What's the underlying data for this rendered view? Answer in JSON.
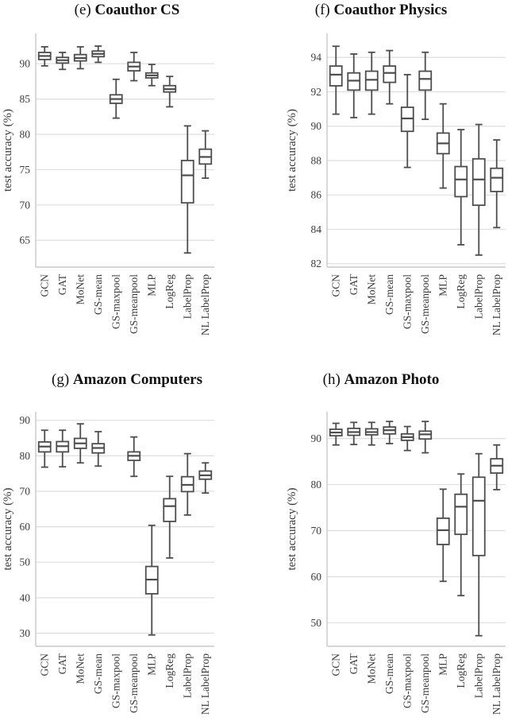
{
  "colors": {
    "box_stroke": "#4d4d4d",
    "grid": "#dedede",
    "spine": "#c9c9c9",
    "text": "#3c3c3c",
    "background": "#ffffff"
  },
  "chart_data": [
    {
      "type": "boxplot",
      "id": "e",
      "title_prefix": "(e)",
      "title_bold": "Coauthor CS",
      "ylabel": "test accuracy (%)",
      "ylim": [
        61.2,
        94.3
      ],
      "yticks": [
        65,
        70,
        75,
        80,
        85,
        90
      ],
      "grid": true,
      "legend": "none",
      "categories": [
        "GCN",
        "GAT",
        "MoNet",
        "GS-mean",
        "GS-maxpool",
        "GS-meanpool",
        "MLP",
        "LogReg",
        "LabelProp",
        "NL LabelProp"
      ],
      "boxes": [
        {
          "whislo": 89.7,
          "q1": 90.6,
          "med": 91.1,
          "q3": 91.6,
          "whishi": 92.4
        },
        {
          "whislo": 89.2,
          "q1": 90.1,
          "med": 90.5,
          "q3": 90.9,
          "whishi": 91.6
        },
        {
          "whislo": 89.3,
          "q1": 90.4,
          "med": 90.8,
          "q3": 91.3,
          "whishi": 92.4
        },
        {
          "whislo": 90.2,
          "q1": 91.0,
          "med": 91.4,
          "q3": 91.8,
          "whishi": 92.5
        },
        {
          "whislo": 82.3,
          "q1": 84.4,
          "med": 85.0,
          "q3": 85.6,
          "whishi": 87.8
        },
        {
          "whislo": 87.6,
          "q1": 89.0,
          "med": 89.6,
          "q3": 90.2,
          "whishi": 91.6
        },
        {
          "whislo": 86.9,
          "q1": 88.0,
          "med": 88.35,
          "q3": 88.7,
          "whishi": 89.9
        },
        {
          "whislo": 83.9,
          "q1": 86.0,
          "med": 86.4,
          "q3": 86.9,
          "whishi": 88.2
        },
        {
          "whislo": 63.2,
          "q1": 70.3,
          "med": 74.2,
          "q3": 76.3,
          "whishi": 81.2
        },
        {
          "whislo": 73.8,
          "q1": 75.8,
          "med": 76.8,
          "q3": 77.9,
          "whishi": 80.5
        }
      ]
    },
    {
      "type": "boxplot",
      "id": "f",
      "title_prefix": "(f)",
      "title_bold": "Coauthor Physics",
      "ylabel": "test accuracy (%)",
      "ylim": [
        81.8,
        95.4
      ],
      "yticks": [
        82,
        84,
        86,
        88,
        90,
        92,
        94
      ],
      "grid": true,
      "legend": "none",
      "categories": [
        "GCN",
        "GAT",
        "MoNet",
        "GS-mean",
        "GS-maxpool",
        "GS-meanpool",
        "MLP",
        "LogReg",
        "LabelProp",
        "NL LabelProp"
      ],
      "boxes": [
        {
          "whislo": 90.7,
          "q1": 92.35,
          "med": 93.0,
          "q3": 93.5,
          "whishi": 94.65
        },
        {
          "whislo": 90.5,
          "q1": 92.1,
          "med": 92.65,
          "q3": 93.1,
          "whishi": 94.2
        },
        {
          "whislo": 90.7,
          "q1": 92.1,
          "med": 92.7,
          "q3": 93.2,
          "whishi": 94.3
        },
        {
          "whislo": 91.3,
          "q1": 92.55,
          "med": 93.1,
          "q3": 93.5,
          "whishi": 94.4
        },
        {
          "whislo": 87.6,
          "q1": 89.7,
          "med": 90.45,
          "q3": 91.1,
          "whishi": 93.0
        },
        {
          "whislo": 90.4,
          "q1": 92.1,
          "med": 92.75,
          "q3": 93.2,
          "whishi": 94.3
        },
        {
          "whislo": 86.4,
          "q1": 88.4,
          "med": 89.0,
          "q3": 89.6,
          "whishi": 91.3
        },
        {
          "whislo": 83.1,
          "q1": 85.9,
          "med": 86.9,
          "q3": 87.65,
          "whishi": 89.8
        },
        {
          "whislo": 82.5,
          "q1": 85.4,
          "med": 86.9,
          "q3": 88.1,
          "whishi": 90.1
        },
        {
          "whislo": 84.1,
          "q1": 86.2,
          "med": 87.0,
          "q3": 87.55,
          "whishi": 89.2
        }
      ]
    },
    {
      "type": "boxplot",
      "id": "g",
      "title_prefix": "(g)",
      "title_bold": "Amazon Computers",
      "ylabel": "test accuracy (%)",
      "ylim": [
        26.3,
        92.4
      ],
      "yticks": [
        30,
        40,
        50,
        60,
        70,
        80,
        90
      ],
      "grid": true,
      "legend": "none",
      "categories": [
        "GCN",
        "GAT",
        "MoNet",
        "GS-mean",
        "GS-maxpool",
        "GS-meanpool",
        "MLP",
        "LogReg",
        "LabelProp",
        "NL LabelProp"
      ],
      "boxes": [
        {
          "whislo": 76.8,
          "q1": 81.1,
          "med": 82.6,
          "q3": 83.9,
          "whishi": 87.2
        },
        {
          "whislo": 76.9,
          "q1": 81.1,
          "med": 82.7,
          "q3": 84.0,
          "whishi": 87.2
        },
        {
          "whislo": 78.0,
          "q1": 82.1,
          "med": 83.5,
          "q3": 84.9,
          "whishi": 89.0
        },
        {
          "whislo": 77.1,
          "q1": 80.8,
          "med": 82.2,
          "q3": 83.4,
          "whishi": 86.8
        },
        null,
        {
          "whislo": 74.2,
          "q1": 78.7,
          "med": 80.0,
          "q3": 81.1,
          "whishi": 85.3
        },
        {
          "whislo": 29.5,
          "q1": 41.1,
          "med": 45.1,
          "q3": 48.8,
          "whishi": 60.4
        },
        {
          "whislo": 51.2,
          "q1": 61.5,
          "med": 65.8,
          "q3": 67.9,
          "whishi": 74.2
        },
        {
          "whislo": 63.3,
          "q1": 69.9,
          "med": 71.8,
          "q3": 74.1,
          "whishi": 80.6
        },
        {
          "whislo": 69.5,
          "q1": 73.4,
          "med": 74.5,
          "q3": 75.7,
          "whishi": 78.0
        }
      ]
    },
    {
      "type": "boxplot",
      "id": "h",
      "title_prefix": "(h)",
      "title_bold": "Amazon Photo",
      "ylabel": "test accuracy (%)",
      "ylim": [
        44.9,
        95.8
      ],
      "yticks": [
        50,
        60,
        70,
        80,
        90
      ],
      "grid": true,
      "legend": "none",
      "categories": [
        "GCN",
        "GAT",
        "MoNet",
        "GS-mean",
        "GS-maxpool",
        "GS-meanpool",
        "MLP",
        "LogReg",
        "LabelProp",
        "NL LabelProp"
      ],
      "boxes": [
        {
          "whislo": 88.6,
          "q1": 90.6,
          "med": 91.3,
          "q3": 92.0,
          "whishi": 93.3
        },
        {
          "whislo": 88.7,
          "q1": 90.7,
          "med": 91.4,
          "q3": 92.2,
          "whishi": 93.5
        },
        {
          "whislo": 88.6,
          "q1": 90.8,
          "med": 91.4,
          "q3": 92.1,
          "whishi": 93.5
        },
        {
          "whislo": 88.9,
          "q1": 91.0,
          "med": 91.8,
          "q3": 92.5,
          "whishi": 93.7
        },
        {
          "whislo": 87.4,
          "q1": 89.6,
          "med": 90.3,
          "q3": 91.0,
          "whishi": 92.6
        },
        {
          "whislo": 86.9,
          "q1": 89.9,
          "med": 90.9,
          "q3": 91.6,
          "whishi": 93.7
        },
        {
          "whislo": 59.0,
          "q1": 67.0,
          "med": 70.1,
          "q3": 72.7,
          "whishi": 79.0
        },
        {
          "whislo": 55.9,
          "q1": 69.2,
          "med": 75.2,
          "q3": 77.9,
          "whishi": 82.3
        },
        {
          "whislo": 47.2,
          "q1": 64.6,
          "med": 76.5,
          "q3": 81.6,
          "whishi": 86.7
        },
        {
          "whislo": 78.9,
          "q1": 82.5,
          "med": 84.1,
          "q3": 85.6,
          "whishi": 88.6
        }
      ]
    }
  ]
}
